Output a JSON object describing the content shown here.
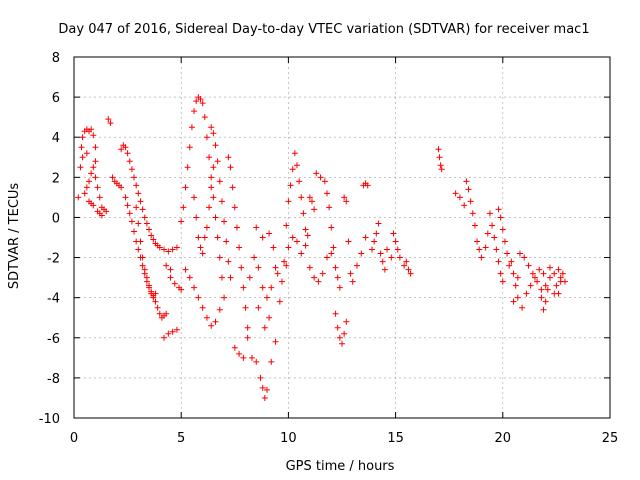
{
  "chart_data": {
    "type": "scatter",
    "title": "Day 047 of 2016, Sidereal Day-to-day VTEC variation (SDTVAR) for receiver mac1",
    "xlabel": "GPS time / hours",
    "ylabel": "SDTVAR / TECUs",
    "xlim": [
      0,
      25
    ],
    "ylim": [
      -10,
      8
    ],
    "xticks": [
      0,
      5,
      10,
      15,
      20,
      25
    ],
    "yticks": [
      -10,
      -8,
      -6,
      -4,
      -2,
      0,
      2,
      4,
      6,
      8
    ],
    "grid": true,
    "marker": "+",
    "series": [
      {
        "name": "SDTVAR",
        "color": "#ff0000",
        "points": [
          [
            0.2,
            1.0
          ],
          [
            0.3,
            2.5
          ],
          [
            0.35,
            3.5
          ],
          [
            0.4,
            4.0
          ],
          [
            0.5,
            4.3
          ],
          [
            0.6,
            4.4
          ],
          [
            0.7,
            4.3
          ],
          [
            0.8,
            4.4
          ],
          [
            0.9,
            4.1
          ],
          [
            1.0,
            3.5
          ],
          [
            1.0,
            2.0
          ],
          [
            1.1,
            1.5
          ],
          [
            1.2,
            1.0
          ],
          [
            1.3,
            0.5
          ],
          [
            1.4,
            0.4
          ],
          [
            1.5,
            0.3
          ],
          [
            1.0,
            2.8
          ],
          [
            0.9,
            2.5
          ],
          [
            0.8,
            2.2
          ],
          [
            0.7,
            1.8
          ],
          [
            0.6,
            1.5
          ],
          [
            0.5,
            1.2
          ],
          [
            0.7,
            0.8
          ],
          [
            0.8,
            0.7
          ],
          [
            0.9,
            0.6
          ],
          [
            1.1,
            0.3
          ],
          [
            1.2,
            0.2
          ],
          [
            1.3,
            0.1
          ],
          [
            0.4,
            3.0
          ],
          [
            0.6,
            3.2
          ],
          [
            1.6,
            4.9
          ],
          [
            1.7,
            4.7
          ],
          [
            1.8,
            2.0
          ],
          [
            1.9,
            1.8
          ],
          [
            2.0,
            1.7
          ],
          [
            2.1,
            1.6
          ],
          [
            2.2,
            1.5
          ],
          [
            2.2,
            3.4
          ],
          [
            2.3,
            3.6
          ],
          [
            2.4,
            3.5
          ],
          [
            2.5,
            3.2
          ],
          [
            2.6,
            2.8
          ],
          [
            2.7,
            2.4
          ],
          [
            2.8,
            2.0
          ],
          [
            2.9,
            1.6
          ],
          [
            3.0,
            1.2
          ],
          [
            3.1,
            0.8
          ],
          [
            3.2,
            0.4
          ],
          [
            3.3,
            0.0
          ],
          [
            3.4,
            -0.3
          ],
          [
            3.5,
            -0.6
          ],
          [
            3.6,
            -0.9
          ],
          [
            3.7,
            -1.1
          ],
          [
            3.8,
            -1.3
          ],
          [
            3.9,
            -1.4
          ],
          [
            4.0,
            -1.5
          ],
          [
            4.2,
            -1.6
          ],
          [
            4.4,
            -1.7
          ],
          [
            4.6,
            -1.6
          ],
          [
            4.8,
            -1.5
          ],
          [
            2.4,
            1.0
          ],
          [
            2.5,
            0.6
          ],
          [
            2.6,
            0.2
          ],
          [
            2.7,
            -0.2
          ],
          [
            2.8,
            -0.7
          ],
          [
            2.9,
            -1.2
          ],
          [
            3.0,
            -1.6
          ],
          [
            3.1,
            -2.0
          ],
          [
            3.2,
            -2.4
          ],
          [
            3.3,
            -2.8
          ],
          [
            3.4,
            -3.2
          ],
          [
            3.5,
            -3.5
          ],
          [
            3.6,
            -3.8
          ],
          [
            3.7,
            -4.0
          ],
          [
            3.8,
            -4.2
          ],
          [
            3.9,
            -4.5
          ],
          [
            4.0,
            -4.8
          ],
          [
            4.1,
            -5.0
          ],
          [
            4.2,
            -4.9
          ],
          [
            4.3,
            -4.8
          ],
          [
            2.9,
            0.5
          ],
          [
            3.0,
            -0.3
          ],
          [
            3.1,
            -1.2
          ],
          [
            3.2,
            -2.0
          ],
          [
            3.3,
            -2.6
          ],
          [
            3.4,
            -3.0
          ],
          [
            3.5,
            -3.4
          ],
          [
            3.6,
            -3.7
          ],
          [
            3.7,
            -3.9
          ],
          [
            3.8,
            -3.8
          ],
          [
            4.2,
            -6.0
          ],
          [
            4.4,
            -5.8
          ],
          [
            4.6,
            -5.7
          ],
          [
            4.8,
            -5.6
          ],
          [
            4.5,
            -3.0
          ],
          [
            4.7,
            -3.3
          ],
          [
            4.9,
            -3.5
          ],
          [
            5.0,
            -3.6
          ],
          [
            4.3,
            -2.4
          ],
          [
            4.5,
            -2.6
          ],
          [
            5.0,
            -0.2
          ],
          [
            5.1,
            0.5
          ],
          [
            5.2,
            1.5
          ],
          [
            5.3,
            2.5
          ],
          [
            5.4,
            3.5
          ],
          [
            5.5,
            4.5
          ],
          [
            5.6,
            5.3
          ],
          [
            5.7,
            5.8
          ],
          [
            5.8,
            6.0
          ],
          [
            5.9,
            5.9
          ],
          [
            6.0,
            5.7
          ],
          [
            6.1,
            5.0
          ],
          [
            6.2,
            4.0
          ],
          [
            6.3,
            3.0
          ],
          [
            6.4,
            2.0
          ],
          [
            6.5,
            1.0
          ],
          [
            6.6,
            0.0
          ],
          [
            6.7,
            -1.0
          ],
          [
            6.8,
            -2.0
          ],
          [
            6.9,
            -3.0
          ],
          [
            5.6,
            1.0
          ],
          [
            5.7,
            0.0
          ],
          [
            5.8,
            -1.0
          ],
          [
            5.9,
            -1.5
          ],
          [
            6.0,
            -1.8
          ],
          [
            6.1,
            -1.0
          ],
          [
            6.2,
            -0.5
          ],
          [
            6.3,
            0.5
          ],
          [
            6.4,
            1.5
          ],
          [
            6.5,
            2.5
          ],
          [
            6.4,
            4.5
          ],
          [
            6.5,
            4.2
          ],
          [
            6.6,
            3.6
          ],
          [
            6.7,
            2.8
          ],
          [
            6.8,
            1.8
          ],
          [
            6.9,
            0.8
          ],
          [
            7.0,
            -0.2
          ],
          [
            7.1,
            -1.2
          ],
          [
            7.2,
            -2.2
          ],
          [
            7.3,
            -3.0
          ],
          [
            5.2,
            -2.6
          ],
          [
            5.4,
            -3.0
          ],
          [
            5.6,
            -3.5
          ],
          [
            5.8,
            -4.0
          ],
          [
            6.0,
            -4.5
          ],
          [
            6.2,
            -5.0
          ],
          [
            6.4,
            -5.4
          ],
          [
            6.6,
            -5.2
          ],
          [
            6.8,
            -4.6
          ],
          [
            7.0,
            -4.0
          ],
          [
            7.2,
            3.0
          ],
          [
            7.3,
            2.5
          ],
          [
            7.4,
            1.5
          ],
          [
            7.5,
            0.5
          ],
          [
            7.6,
            -0.5
          ],
          [
            7.7,
            -1.5
          ],
          [
            7.8,
            -2.5
          ],
          [
            7.9,
            -3.5
          ],
          [
            8.0,
            -4.5
          ],
          [
            8.1,
            -5.5
          ],
          [
            7.5,
            -6.5
          ],
          [
            7.7,
            -6.8
          ],
          [
            7.9,
            -7.0
          ],
          [
            8.1,
            -6.0
          ],
          [
            8.3,
            -7.0
          ],
          [
            8.5,
            -7.2
          ],
          [
            8.7,
            -8.0
          ],
          [
            8.8,
            -8.5
          ],
          [
            8.9,
            -9.0
          ],
          [
            9.0,
            -8.6
          ],
          [
            8.2,
            -3.0
          ],
          [
            8.4,
            -2.0
          ],
          [
            8.6,
            -2.5
          ],
          [
            8.8,
            -3.5
          ],
          [
            9.0,
            -4.0
          ],
          [
            9.2,
            -3.5
          ],
          [
            9.4,
            -2.5
          ],
          [
            8.6,
            -4.5
          ],
          [
            8.9,
            -5.5
          ],
          [
            9.1,
            -5.0
          ],
          [
            8.5,
            -0.5
          ],
          [
            8.8,
            -1.0
          ],
          [
            9.1,
            -0.8
          ],
          [
            9.3,
            -1.5
          ],
          [
            9.5,
            -2.8
          ],
          [
            9.7,
            -3.2
          ],
          [
            9.9,
            -2.4
          ],
          [
            9.2,
            -7.2
          ],
          [
            9.4,
            -6.2
          ],
          [
            9.6,
            -4.2
          ],
          [
            9.9,
            -0.4
          ],
          [
            10.0,
            0.8
          ],
          [
            10.1,
            1.6
          ],
          [
            10.2,
            2.4
          ],
          [
            10.3,
            3.2
          ],
          [
            10.4,
            2.6
          ],
          [
            10.5,
            1.8
          ],
          [
            10.6,
            1.0
          ],
          [
            10.7,
            0.2
          ],
          [
            10.8,
            -0.6
          ],
          [
            9.8,
            -2.2
          ],
          [
            10.0,
            -1.5
          ],
          [
            10.2,
            -1.0
          ],
          [
            10.4,
            -1.2
          ],
          [
            10.6,
            -1.8
          ],
          [
            10.8,
            -1.4
          ],
          [
            10.9,
            -0.9
          ],
          [
            11.0,
            1.0
          ],
          [
            11.1,
            0.8
          ],
          [
            11.2,
            0.4
          ],
          [
            11.3,
            2.2
          ],
          [
            11.5,
            2.0
          ],
          [
            11.7,
            1.8
          ],
          [
            11.8,
            1.2
          ],
          [
            11.9,
            0.5
          ],
          [
            12.0,
            -0.5
          ],
          [
            12.1,
            -1.5
          ],
          [
            12.2,
            -2.5
          ],
          [
            12.3,
            -3.0
          ],
          [
            12.4,
            -3.5
          ],
          [
            11.0,
            -2.5
          ],
          [
            11.2,
            -3.0
          ],
          [
            11.4,
            -3.2
          ],
          [
            11.6,
            -2.8
          ],
          [
            11.8,
            -2.0
          ],
          [
            12.0,
            -1.8
          ],
          [
            12.2,
            -4.8
          ],
          [
            12.3,
            -5.5
          ],
          [
            12.4,
            -6.0
          ],
          [
            12.5,
            -6.3
          ],
          [
            12.6,
            -5.8
          ],
          [
            12.7,
            -5.2
          ],
          [
            12.6,
            1.0
          ],
          [
            12.7,
            0.8
          ],
          [
            12.8,
            -1.2
          ],
          [
            12.9,
            -2.8
          ],
          [
            13.0,
            -3.2
          ],
          [
            13.2,
            -2.4
          ],
          [
            13.4,
            -1.8
          ],
          [
            13.6,
            -1.0
          ],
          [
            13.5,
            1.6
          ],
          [
            13.6,
            1.7
          ],
          [
            13.7,
            1.6
          ],
          [
            13.9,
            -1.6
          ],
          [
            14.0,
            -1.2
          ],
          [
            14.1,
            -0.8
          ],
          [
            14.2,
            -0.3
          ],
          [
            14.3,
            -1.8
          ],
          [
            14.4,
            -2.2
          ],
          [
            14.5,
            -2.6
          ],
          [
            14.6,
            -1.6
          ],
          [
            14.8,
            -2.0
          ],
          [
            14.9,
            -0.8
          ],
          [
            15.0,
            -1.2
          ],
          [
            15.1,
            -1.6
          ],
          [
            15.2,
            -2.0
          ],
          [
            15.4,
            -2.4
          ],
          [
            15.5,
            -2.2
          ],
          [
            15.6,
            -2.6
          ],
          [
            15.7,
            -2.8
          ],
          [
            17.0,
            3.4
          ],
          [
            17.05,
            3.0
          ],
          [
            17.1,
            2.6
          ],
          [
            17.15,
            2.4
          ],
          [
            17.8,
            1.2
          ],
          [
            18.0,
            1.0
          ],
          [
            18.2,
            0.6
          ],
          [
            18.3,
            1.8
          ],
          [
            18.4,
            1.4
          ],
          [
            18.5,
            0.8
          ],
          [
            18.6,
            0.2
          ],
          [
            18.7,
            -0.4
          ],
          [
            18.8,
            -1.2
          ],
          [
            18.9,
            -1.6
          ],
          [
            19.0,
            -2.0
          ],
          [
            19.2,
            -1.5
          ],
          [
            19.3,
            -0.8
          ],
          [
            19.4,
            0.2
          ],
          [
            19.5,
            -0.4
          ],
          [
            19.6,
            -1.0
          ],
          [
            19.7,
            -1.6
          ],
          [
            19.8,
            -2.2
          ],
          [
            19.9,
            -2.8
          ],
          [
            20.0,
            -3.2
          ],
          [
            19.8,
            0.4
          ],
          [
            19.9,
            0.0
          ],
          [
            20.0,
            -0.6
          ],
          [
            20.1,
            -1.2
          ],
          [
            20.2,
            -1.8
          ],
          [
            20.3,
            -2.4
          ],
          [
            20.4,
            -2.2
          ],
          [
            20.5,
            -2.8
          ],
          [
            20.6,
            -3.4
          ],
          [
            20.7,
            -3.0
          ],
          [
            20.5,
            -4.2
          ],
          [
            20.7,
            -4.0
          ],
          [
            20.9,
            -4.5
          ],
          [
            21.1,
            -3.8
          ],
          [
            21.3,
            -3.4
          ],
          [
            21.5,
            -3.0
          ],
          [
            21.7,
            -2.6
          ],
          [
            21.8,
            -4.0
          ],
          [
            21.9,
            -4.6
          ],
          [
            22.0,
            -4.2
          ],
          [
            21.2,
            -2.4
          ],
          [
            21.4,
            -2.8
          ],
          [
            21.6,
            -3.2
          ],
          [
            21.8,
            -3.6
          ],
          [
            22.0,
            -3.4
          ],
          [
            22.2,
            -3.0
          ],
          [
            22.4,
            -2.8
          ],
          [
            22.5,
            -3.4
          ],
          [
            22.6,
            -3.8
          ],
          [
            22.7,
            -3.2
          ],
          [
            22.8,
            -2.8
          ],
          [
            22.9,
            -3.2
          ],
          [
            22.2,
            -2.5
          ],
          [
            22.4,
            -3.8
          ],
          [
            22.6,
            -2.6
          ],
          [
            21.0,
            -2.0
          ],
          [
            20.8,
            -1.8
          ],
          [
            22.1,
            -3.6
          ],
          [
            21.9,
            -2.8
          ],
          [
            22.7,
            -3.0
          ]
        ]
      }
    ]
  }
}
